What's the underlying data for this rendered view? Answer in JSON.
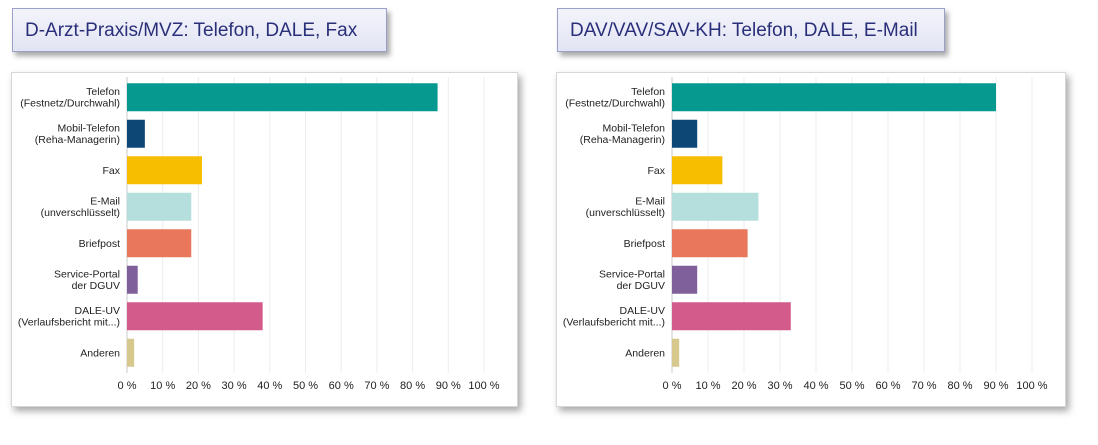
{
  "chart_data": [
    {
      "type": "bar",
      "orientation": "horizontal",
      "title": "D-Arzt-Praxis/MVZ: Telefon, DALE, Fax",
      "categories": [
        [
          "Telefon",
          "(Festnetz/Durchwahl)"
        ],
        [
          "Mobil-Telefon",
          "(Reha-Managerin)"
        ],
        [
          "Fax"
        ],
        [
          "E-Mail",
          "(unverschlüsselt)"
        ],
        [
          "Briefpost"
        ],
        [
          "Service-Portal",
          "der DGUV"
        ],
        [
          "DALE-UV",
          "(Verlaufsbericht mit...)"
        ],
        [
          "Anderen"
        ]
      ],
      "values": [
        87,
        5,
        21,
        18,
        18,
        3,
        38,
        2
      ],
      "colors": [
        "#06998f",
        "#0d4776",
        "#f7be00",
        "#b5dfdc",
        "#e8775c",
        "#80609b",
        "#d35b8c",
        "#d7c98d"
      ],
      "xlim": [
        0,
        100
      ],
      "xticks": [
        "0 %",
        "10 %",
        "20 %",
        "30 %",
        "40 %",
        "50 %",
        "60 %",
        "70 %",
        "80 %",
        "90 %",
        "100 %"
      ],
      "grid": true
    },
    {
      "type": "bar",
      "orientation": "horizontal",
      "title": "DAV/VAV/SAV-KH: Telefon, DALE, E-Mail",
      "categories": [
        [
          "Telefon",
          "(Festnetz/Durchwahl)"
        ],
        [
          "Mobil-Telefon",
          "(Reha-Managerin)"
        ],
        [
          "Fax"
        ],
        [
          "E-Mail",
          "(unverschlüsselt)"
        ],
        [
          "Briefpost"
        ],
        [
          "Service-Portal",
          "der DGUV"
        ],
        [
          "DALE-UV",
          "(Verlaufsbericht mit...)"
        ],
        [
          "Anderen"
        ]
      ],
      "values": [
        90,
        7,
        14,
        24,
        21,
        7,
        33,
        2
      ],
      "colors": [
        "#06998f",
        "#0d4776",
        "#f7be00",
        "#b5dfdc",
        "#e8775c",
        "#80609b",
        "#d35b8c",
        "#d7c98d"
      ],
      "xlim": [
        0,
        100
      ],
      "xticks": [
        "0 %",
        "10 %",
        "20 %",
        "30 %",
        "40 %",
        "50 %",
        "60 %",
        "70 %",
        "80 %",
        "90 %",
        "100 %"
      ],
      "grid": true
    }
  ]
}
